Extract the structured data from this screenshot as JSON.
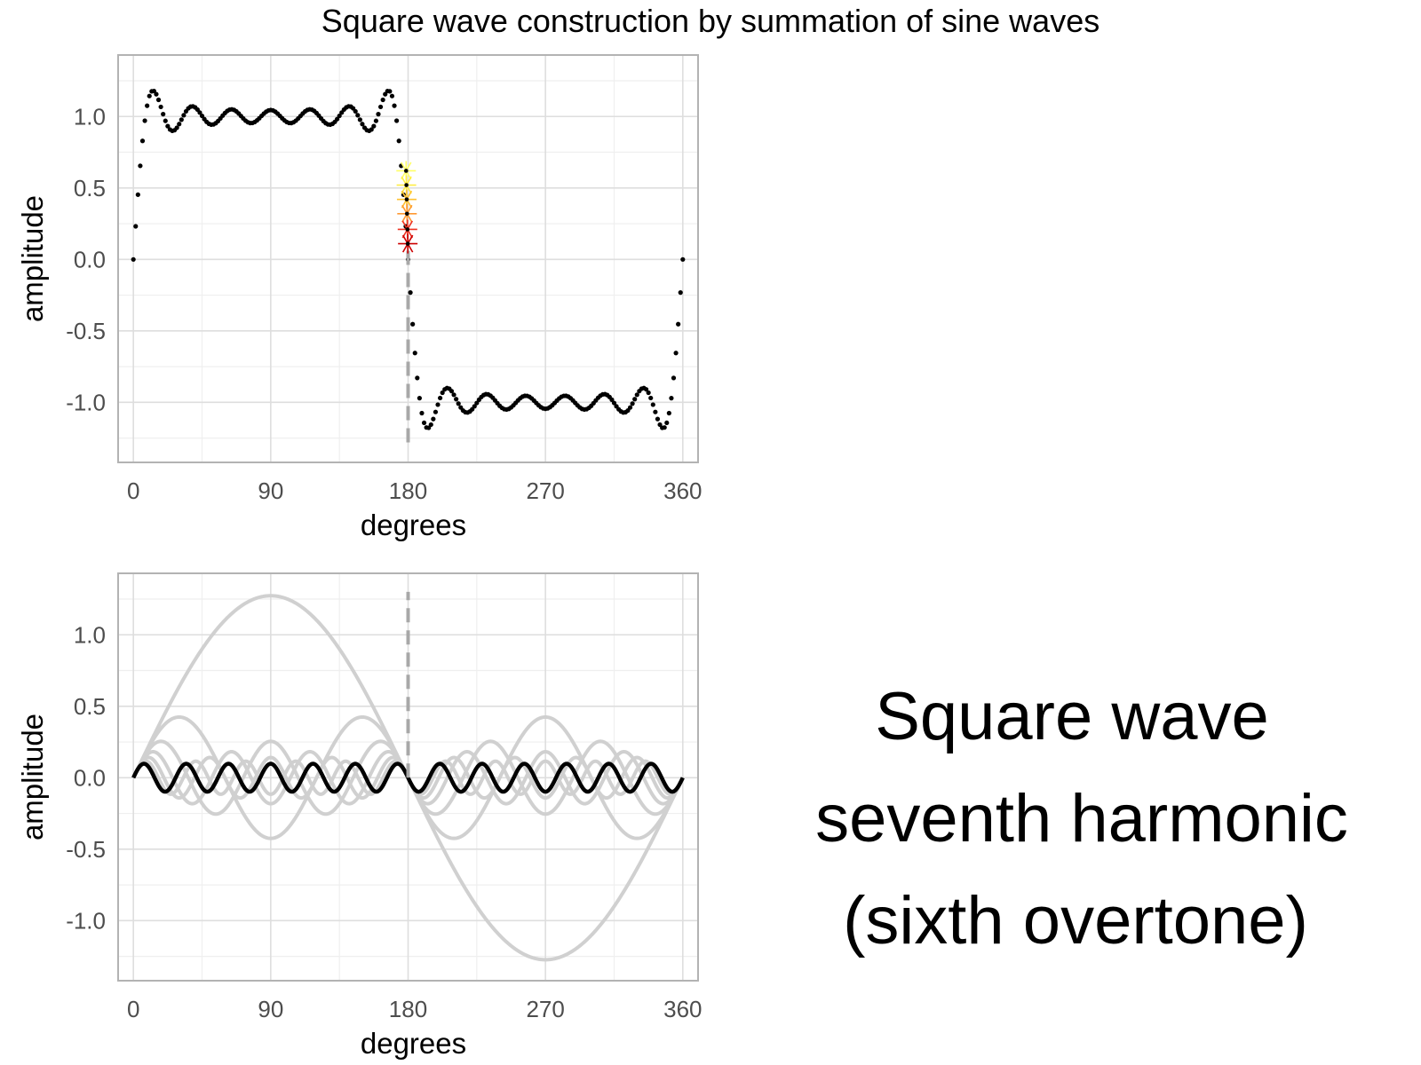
{
  "figure": {
    "title": "Square wave construction by summation of sine waves",
    "caption_lines": [
      "Square wave",
      "seventh harmonic",
      "(sixth overtone)"
    ]
  },
  "colors": {
    "panel_border": "#b3b3b3",
    "grid_major": "#dedede",
    "grid_minor": "#efefef",
    "tick_text": "#4d4d4d",
    "series_dark": "#000000",
    "series_light": "#d0d0d0",
    "guide_line": "#a8a8a8",
    "markers": [
      "#ffff66",
      "#ffee44",
      "#ffc233",
      "#ff9933",
      "#ee3322",
      "#cc0000"
    ]
  },
  "chart_data": [
    {
      "type": "scatter",
      "description_axis": "top panel",
      "xlabel": "degrees",
      "ylabel": "amplitude",
      "xlim": [
        -10,
        370
      ],
      "ylim": [
        -1.42,
        1.43
      ],
      "xticks": [
        "0",
        "90",
        "180",
        "270",
        "360"
      ],
      "yticks": [
        "-1.0",
        "-0.5",
        "0.0",
        "0.5",
        "1.0"
      ],
      "grid": true,
      "series": [
        {
          "kind": "fourier_partial_sum_points",
          "harmonics": [
            1,
            3,
            5,
            7,
            9,
            11,
            13
          ],
          "amplitude_scale": 1.2732,
          "x_start": 0,
          "x_end": 360,
          "x_step": 1.5
        }
      ],
      "guide_line": {
        "x": 180,
        "y_from": -1.28,
        "y_to": 0.1,
        "style": "dashed"
      },
      "markers": [
        {
          "x": 178.7,
          "y": 0.62
        },
        {
          "x": 178.9,
          "y": 0.52
        },
        {
          "x": 179.1,
          "y": 0.42
        },
        {
          "x": 179.3,
          "y": 0.32
        },
        {
          "x": 179.6,
          "y": 0.21
        },
        {
          "x": 179.8,
          "y": 0.11
        }
      ]
    },
    {
      "type": "line",
      "description_axis": "bottom panel",
      "xlabel": "degrees",
      "ylabel": "amplitude",
      "xlim": [
        -10,
        370
      ],
      "ylim": [
        -1.42,
        1.43
      ],
      "xticks": [
        "0",
        "90",
        "180",
        "270",
        "360"
      ],
      "yticks": [
        "-1.0",
        "-0.5",
        "0.0",
        "0.5",
        "1.0"
      ],
      "grid": true,
      "series": [
        {
          "harmonic": 1,
          "amplitude": 1.2732,
          "style": "light"
        },
        {
          "harmonic": 3,
          "amplitude": 0.4244,
          "style": "light"
        },
        {
          "harmonic": 5,
          "amplitude": 0.2546,
          "style": "light"
        },
        {
          "harmonic": 7,
          "amplitude": 0.1819,
          "style": "light"
        },
        {
          "harmonic": 9,
          "amplitude": 0.1415,
          "style": "light"
        },
        {
          "harmonic": 11,
          "amplitude": 0.1157,
          "style": "light"
        },
        {
          "harmonic": 13,
          "amplitude": 0.0979,
          "style": "dark"
        }
      ],
      "guide_line": {
        "x": 180,
        "y_from": 0.0,
        "y_to": 1.3,
        "style": "dashed"
      }
    }
  ]
}
